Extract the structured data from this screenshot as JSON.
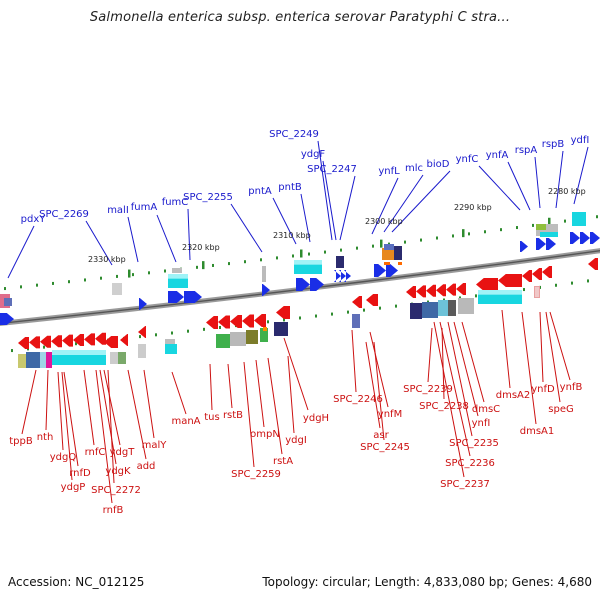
{
  "title": "Salmonella enterica subsp. enterica serovar Paratyphi C stra...",
  "footer": {
    "accession": "Accession: NC_012125",
    "summary": "Topology: circular; Length: 4,833,080 bp; Genes: 4,680"
  },
  "colors": {
    "forward_label": "#1a1acc",
    "reverse_label": "#cc1111",
    "forward_arrow": "#1a2ee6",
    "reverse_arrow": "#e81212",
    "backbone": "#777777",
    "tick": "#2e8b2e",
    "cyan": "#18d6e0",
    "navy": "#2b2b6e"
  },
  "scale_labels": [
    {
      "id": "k2330",
      "text": "2330 kbp"
    },
    {
      "id": "k2320",
      "text": "2320 kbp"
    },
    {
      "id": "k2310",
      "text": "2310 kbp"
    },
    {
      "id": "k2300",
      "text": "2300 kbp"
    },
    {
      "id": "k2290",
      "text": "2290 kbp"
    },
    {
      "id": "k2280",
      "text": "2280 kbp"
    }
  ],
  "forward_genes": [
    {
      "id": "pdxY",
      "text": "pdxY"
    },
    {
      "id": "SPC_2269",
      "text": "SPC_2269"
    },
    {
      "id": "malI",
      "text": "malI"
    },
    {
      "id": "fumA",
      "text": "fumA"
    },
    {
      "id": "fumC",
      "text": "fumC"
    },
    {
      "id": "SPC_2255",
      "text": "SPC_2255"
    },
    {
      "id": "pntA",
      "text": "pntA"
    },
    {
      "id": "pntB",
      "text": "pntB"
    },
    {
      "id": "SPC_2249",
      "text": "SPC_2249"
    },
    {
      "id": "ydgF",
      "text": "ydgF"
    },
    {
      "id": "SPC_2247",
      "text": "SPC_2247"
    },
    {
      "id": "ynfL",
      "text": "ynfL"
    },
    {
      "id": "mlc",
      "text": "mlc"
    },
    {
      "id": "bioD",
      "text": "bioD"
    },
    {
      "id": "ynfC",
      "text": "ynfC"
    },
    {
      "id": "ynfA",
      "text": "ynfA"
    },
    {
      "id": "rspA",
      "text": "rspA"
    },
    {
      "id": "rspB",
      "text": "rspB"
    },
    {
      "id": "ydfI",
      "text": "ydfI"
    }
  ],
  "reverse_genes": [
    {
      "id": "tppB",
      "text": "tppB"
    },
    {
      "id": "nth",
      "text": "nth"
    },
    {
      "id": "ydgQ",
      "text": "ydgQ"
    },
    {
      "id": "rnfD",
      "text": "rnfD"
    },
    {
      "id": "ydgP",
      "text": "ydgP"
    },
    {
      "id": "rnfC",
      "text": "rnfC"
    },
    {
      "id": "ydgK",
      "text": "ydgK"
    },
    {
      "id": "ydgT",
      "text": "ydgT"
    },
    {
      "id": "SPC_2272",
      "text": "SPC_2272"
    },
    {
      "id": "rnfB",
      "text": "rnfB"
    },
    {
      "id": "add",
      "text": "add"
    },
    {
      "id": "malY",
      "text": "malY"
    },
    {
      "id": "manA",
      "text": "manA"
    },
    {
      "id": "tus",
      "text": "tus"
    },
    {
      "id": "rstB",
      "text": "rstB"
    },
    {
      "id": "SPC_2259",
      "text": "SPC_2259"
    },
    {
      "id": "ompN",
      "text": "ompN"
    },
    {
      "id": "rstA",
      "text": "rstA"
    },
    {
      "id": "ydgI",
      "text": "ydgI"
    },
    {
      "id": "ydgH",
      "text": "ydgH"
    },
    {
      "id": "SPC_2246",
      "text": "SPC_2246"
    },
    {
      "id": "ynfM",
      "text": "ynfM"
    },
    {
      "id": "asr",
      "text": "asr"
    },
    {
      "id": "SPC_2245",
      "text": "SPC_2245"
    },
    {
      "id": "SPC_2239",
      "text": "SPC_2239"
    },
    {
      "id": "SPC_2238",
      "text": "SPC_2238"
    },
    {
      "id": "dmsC",
      "text": "dmsC"
    },
    {
      "id": "ynfI",
      "text": "ynfI"
    },
    {
      "id": "SPC_2235",
      "text": "SPC_2235"
    },
    {
      "id": "SPC_2236",
      "text": "SPC_2236"
    },
    {
      "id": "SPC_2237",
      "text": "SPC_2237"
    },
    {
      "id": "dmsA2",
      "text": "dmsA2"
    },
    {
      "id": "dmsA1",
      "text": "dmsA1"
    },
    {
      "id": "ynfD",
      "text": "ynfD"
    },
    {
      "id": "speG",
      "text": "speG"
    },
    {
      "id": "ynfB",
      "text": "ynfB"
    }
  ]
}
